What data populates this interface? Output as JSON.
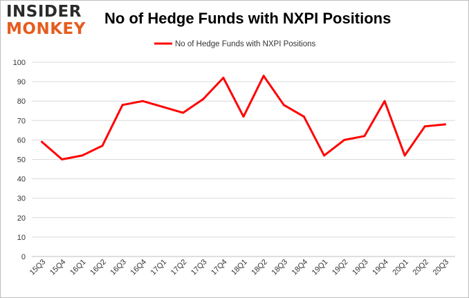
{
  "logo": {
    "line1": "INSIDER",
    "line2": "MONKEY"
  },
  "colors": {
    "series": "#ff0000",
    "grid": "#d9d9d9",
    "logo_dark": "#2b2b2b",
    "logo_accent": "#e65c1e"
  },
  "chart_data": {
    "type": "line",
    "title": "No of Hedge Funds with NXPI Positions",
    "xlabel": "",
    "ylabel": "",
    "categories": [
      "15Q3",
      "15Q4",
      "16Q1",
      "16Q2",
      "16Q3",
      "16Q4",
      "17Q1",
      "17Q2",
      "17Q3",
      "17Q4",
      "18Q1",
      "18Q2",
      "18Q3",
      "18Q4",
      "19Q1",
      "19Q2",
      "19Q3",
      "19Q4",
      "20Q1",
      "20Q2",
      "20Q3"
    ],
    "series": [
      {
        "name": "No of Hedge Funds with NXPI Positions",
        "values": [
          59,
          50,
          52,
          57,
          78,
          80,
          77,
          74,
          81,
          92,
          72,
          93,
          78,
          72,
          52,
          60,
          62,
          80,
          52,
          67,
          68
        ]
      }
    ],
    "ylim": [
      0,
      100
    ],
    "yticks": [
      0,
      10,
      20,
      30,
      40,
      50,
      60,
      70,
      80,
      90,
      100
    ],
    "grid": true,
    "legend_position": "top-center"
  }
}
